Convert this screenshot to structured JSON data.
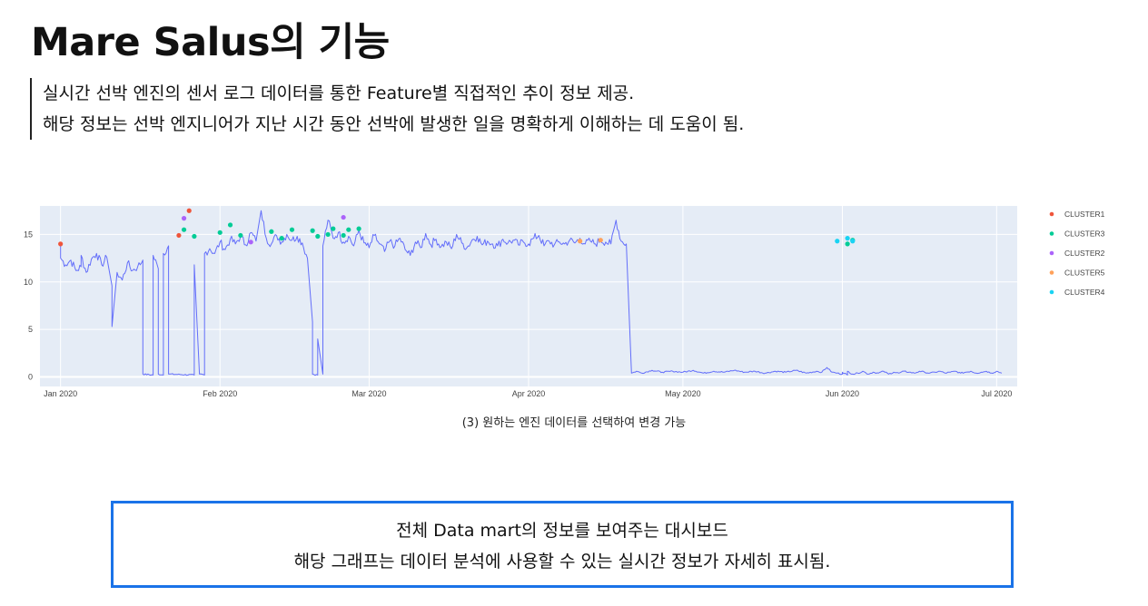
{
  "page": {
    "title": "Mare Salus의 기능",
    "description": [
      "실시간 선박 엔진의 센서 로그 데이터를 통한 Feature별 직접적인 추이 정보 제공.",
      "해당 정보는 선박 엔지니어가 지난 시간 동안 선박에 발생한 일을 명확하게 이해하는 데 도움이 됨."
    ],
    "caption": "(3) 원하는 엔진 데이터를 선택하여 변경 가능",
    "box_lines": [
      "전체 Data mart의 정보를 보여주는 대시보드",
      "해당 그래프는 데이터 분석에 사용할 수 있는 실시간 정보가 자세히 표시됨."
    ]
  },
  "chart_data": {
    "type": "line",
    "title": "",
    "xlabel": "",
    "ylabel": "",
    "x_unit": "day",
    "xlim": [
      "2019-12-28",
      "2020-07-05"
    ],
    "ylim": [
      -1,
      18
    ],
    "y_ticks": [
      0,
      5,
      10,
      15
    ],
    "x_ticks": [
      {
        "date": "2020-01-01",
        "label": "Jan 2020"
      },
      {
        "date": "2020-02-01",
        "label": "Feb 2020"
      },
      {
        "date": "2020-03-01",
        "label": "Mar 2020"
      },
      {
        "date": "2020-04-01",
        "label": "Apr 2020"
      },
      {
        "date": "2020-05-01",
        "label": "May 2020"
      },
      {
        "date": "2020-06-01",
        "label": "Jun 2020"
      },
      {
        "date": "2020-07-01",
        "label": "Jul 2020"
      }
    ],
    "grid": true,
    "legend_position": "right",
    "background": "#e5ecf6",
    "line_color": "#636efa",
    "line_points": [
      [
        "2020-01-01",
        14.0
      ],
      [
        "2020-01-01",
        12.5
      ],
      [
        "2020-01-02",
        11.8
      ],
      [
        "2020-01-03",
        12.3
      ],
      [
        "2020-01-04",
        11.2
      ],
      [
        "2020-01-05",
        11.6
      ],
      [
        "2020-01-05",
        12.8
      ],
      [
        "2020-01-06",
        11.0
      ],
      [
        "2020-01-07",
        12.4
      ],
      [
        "2020-01-08",
        13.0
      ],
      [
        "2020-01-09",
        11.8
      ],
      [
        "2020-01-10",
        12.6
      ],
      [
        "2020-01-11",
        9.6
      ],
      [
        "2020-01-11",
        5.3
      ],
      [
        "2020-01-12",
        11.0
      ],
      [
        "2020-01-13",
        10.2
      ],
      [
        "2020-01-14",
        12.0
      ],
      [
        "2020-01-15",
        11.2
      ],
      [
        "2020-01-16",
        11.6
      ],
      [
        "2020-01-17",
        12.3
      ],
      [
        "2020-01-17",
        0.3
      ],
      [
        "2020-01-19",
        0.2
      ],
      [
        "2020-01-19",
        12.8
      ],
      [
        "2020-01-20",
        11.4
      ],
      [
        "2020-01-20",
        0.3
      ],
      [
        "2020-01-21",
        0.2
      ],
      [
        "2020-01-21",
        13.0
      ],
      [
        "2020-01-22",
        13.8
      ],
      [
        "2020-01-22",
        0.3
      ],
      [
        "2020-01-27",
        0.2
      ],
      [
        "2020-01-27",
        11.8
      ],
      [
        "2020-01-28",
        0.3
      ],
      [
        "2020-01-29",
        0.2
      ],
      [
        "2020-01-29",
        13.0
      ],
      [
        "2020-01-30",
        13.5
      ],
      [
        "2020-01-31",
        13.0
      ],
      [
        "2020-02-01",
        14.2
      ],
      [
        "2020-02-02",
        13.4
      ],
      [
        "2020-02-03",
        14.5
      ],
      [
        "2020-02-04",
        14.0
      ],
      [
        "2020-02-05",
        14.8
      ],
      [
        "2020-02-06",
        13.9
      ],
      [
        "2020-02-07",
        15.2
      ],
      [
        "2020-02-08",
        14.3
      ],
      [
        "2020-02-09",
        17.5
      ],
      [
        "2020-02-10",
        14.6
      ],
      [
        "2020-02-11",
        14.0
      ],
      [
        "2020-02-12",
        14.9
      ],
      [
        "2020-02-13",
        14.2
      ],
      [
        "2020-02-14",
        15.0
      ],
      [
        "2020-02-15",
        14.4
      ],
      [
        "2020-02-16",
        14.8
      ],
      [
        "2020-02-17",
        14.1
      ],
      [
        "2020-02-18",
        12.5
      ],
      [
        "2020-02-19",
        5.8
      ],
      [
        "2020-02-19",
        0.3
      ],
      [
        "2020-02-20",
        0.2
      ],
      [
        "2020-02-20",
        4.0
      ],
      [
        "2020-02-21",
        0.3
      ],
      [
        "2020-02-21",
        13.8
      ],
      [
        "2020-02-22",
        16.5
      ],
      [
        "2020-02-23",
        14.6
      ],
      [
        "2020-02-24",
        15.2
      ],
      [
        "2020-02-25",
        14.2
      ],
      [
        "2020-02-26",
        14.8
      ],
      [
        "2020-02-27",
        13.8
      ],
      [
        "2020-02-28",
        15.4
      ],
      [
        "2020-02-29",
        14.1
      ],
      [
        "2020-03-01",
        13.6
      ],
      [
        "2020-03-02",
        14.9
      ],
      [
        "2020-03-03",
        14.0
      ],
      [
        "2020-03-04",
        13.2
      ],
      [
        "2020-03-05",
        14.3
      ],
      [
        "2020-03-06",
        13.8
      ],
      [
        "2020-03-07",
        14.6
      ],
      [
        "2020-03-08",
        13.4
      ],
      [
        "2020-03-09",
        12.8
      ],
      [
        "2020-03-10",
        14.2
      ],
      [
        "2020-03-11",
        13.6
      ],
      [
        "2020-03-12",
        15.1
      ],
      [
        "2020-03-13",
        13.9
      ],
      [
        "2020-03-14",
        14.5
      ],
      [
        "2020-03-15",
        13.7
      ],
      [
        "2020-03-16",
        14.2
      ],
      [
        "2020-03-17",
        13.5
      ],
      [
        "2020-03-18",
        15.0
      ],
      [
        "2020-03-19",
        14.1
      ],
      [
        "2020-03-20",
        13.6
      ],
      [
        "2020-03-21",
        14.4
      ],
      [
        "2020-03-22",
        14.8
      ],
      [
        "2020-03-23",
        13.9
      ],
      [
        "2020-03-24",
        14.3
      ],
      [
        "2020-03-25",
        14.0
      ],
      [
        "2020-03-26",
        13.8
      ],
      [
        "2020-03-27",
        14.5
      ],
      [
        "2020-03-28",
        14.1
      ],
      [
        "2020-03-29",
        14.4
      ],
      [
        "2020-03-30",
        13.9
      ],
      [
        "2020-03-31",
        14.2
      ],
      [
        "2020-04-01",
        14.0
      ],
      [
        "2020-04-02",
        14.6
      ],
      [
        "2020-04-03",
        14.9
      ],
      [
        "2020-04-04",
        13.8
      ],
      [
        "2020-04-05",
        14.3
      ],
      [
        "2020-04-06",
        13.9
      ],
      [
        "2020-04-07",
        14.2
      ],
      [
        "2020-04-08",
        14.0
      ],
      [
        "2020-04-09",
        14.4
      ],
      [
        "2020-04-10",
        14.1
      ],
      [
        "2020-04-11",
        14.6
      ],
      [
        "2020-04-12",
        14.0
      ],
      [
        "2020-04-13",
        14.3
      ],
      [
        "2020-04-14",
        14.0
      ],
      [
        "2020-04-15",
        14.4
      ],
      [
        "2020-04-16",
        14.2
      ],
      [
        "2020-04-17",
        14.0
      ],
      [
        "2020-04-18",
        16.5
      ],
      [
        "2020-04-19",
        14.3
      ],
      [
        "2020-04-20",
        14.0
      ],
      [
        "2020-04-21",
        0.4
      ],
      [
        "2020-04-22",
        0.6
      ],
      [
        "2020-04-23",
        0.4
      ],
      [
        "2020-04-25",
        0.7
      ],
      [
        "2020-04-27",
        0.5
      ],
      [
        "2020-04-29",
        0.6
      ],
      [
        "2020-05-01",
        0.5
      ],
      [
        "2020-05-03",
        0.7
      ],
      [
        "2020-05-05",
        0.4
      ],
      [
        "2020-05-07",
        0.6
      ],
      [
        "2020-05-09",
        0.5
      ],
      [
        "2020-05-11",
        0.7
      ],
      [
        "2020-05-13",
        0.5
      ],
      [
        "2020-05-15",
        0.6
      ],
      [
        "2020-05-17",
        0.4
      ],
      [
        "2020-05-19",
        0.6
      ],
      [
        "2020-05-21",
        0.5
      ],
      [
        "2020-05-23",
        0.7
      ],
      [
        "2020-05-25",
        0.4
      ],
      [
        "2020-05-27",
        0.6
      ],
      [
        "2020-05-28",
        0.5
      ],
      [
        "2020-05-29",
        1.0
      ],
      [
        "2020-05-30",
        0.5
      ],
      [
        "2020-05-31",
        0.4
      ],
      [
        "2020-06-01",
        0.3
      ],
      [
        "2020-06-01",
        0.5
      ],
      [
        "2020-06-02",
        0.2
      ],
      [
        "2020-06-02",
        0.6
      ],
      [
        "2020-06-03",
        0.3
      ],
      [
        "2020-06-04",
        0.4
      ],
      [
        "2020-06-05",
        0.6
      ],
      [
        "2020-06-06",
        0.3
      ],
      [
        "2020-06-07",
        0.5
      ],
      [
        "2020-06-08",
        0.4
      ],
      [
        "2020-06-09",
        0.6
      ],
      [
        "2020-06-10",
        0.3
      ],
      [
        "2020-06-11",
        0.5
      ],
      [
        "2020-06-12",
        0.4
      ],
      [
        "2020-06-13",
        0.6
      ],
      [
        "2020-06-14",
        0.5
      ],
      [
        "2020-06-15",
        0.4
      ],
      [
        "2020-06-16",
        0.6
      ],
      [
        "2020-06-17",
        0.5
      ],
      [
        "2020-06-18",
        0.4
      ],
      [
        "2020-06-19",
        0.5
      ],
      [
        "2020-06-20",
        0.6
      ],
      [
        "2020-06-21",
        0.4
      ],
      [
        "2020-06-22",
        0.5
      ],
      [
        "2020-06-23",
        0.6
      ],
      [
        "2020-06-24",
        0.4
      ],
      [
        "2020-06-25",
        0.5
      ],
      [
        "2020-06-26",
        0.6
      ],
      [
        "2020-06-27",
        0.4
      ],
      [
        "2020-06-28",
        0.5
      ],
      [
        "2020-06-29",
        0.6
      ],
      [
        "2020-06-30",
        0.4
      ],
      [
        "2020-07-01",
        0.6
      ],
      [
        "2020-07-02",
        0.4
      ]
    ],
    "series": [
      {
        "name": "CLUSTER1",
        "color": "#ef553b",
        "points": [
          [
            "2020-01-01",
            14.0
          ],
          [
            "2020-01-24",
            14.9
          ],
          [
            "2020-01-26",
            17.5
          ]
        ]
      },
      {
        "name": "CLUSTER3",
        "color": "#00cc96",
        "points": [
          [
            "2020-01-25",
            15.5
          ],
          [
            "2020-01-27",
            14.8
          ],
          [
            "2020-02-01",
            15.2
          ],
          [
            "2020-02-03",
            16.0
          ],
          [
            "2020-02-05",
            14.9
          ],
          [
            "2020-02-11",
            15.3
          ],
          [
            "2020-02-13",
            14.6
          ],
          [
            "2020-02-15",
            15.5
          ],
          [
            "2020-02-19",
            15.4
          ],
          [
            "2020-02-20",
            14.8
          ],
          [
            "2020-02-22",
            15.0
          ],
          [
            "2020-02-23",
            15.6
          ],
          [
            "2020-02-25",
            14.9
          ],
          [
            "2020-02-26",
            15.5
          ],
          [
            "2020-02-28",
            15.6
          ],
          [
            "2020-06-02",
            14.0
          ],
          [
            "2020-06-03",
            14.4
          ]
        ]
      },
      {
        "name": "CLUSTER2",
        "color": "#ab63fa",
        "points": [
          [
            "2020-01-25",
            16.7
          ],
          [
            "2020-02-07",
            14.2
          ],
          [
            "2020-02-25",
            16.8
          ]
        ]
      },
      {
        "name": "CLUSTER5",
        "color": "#ffa15a",
        "points": [
          [
            "2020-04-11",
            14.3
          ],
          [
            "2020-04-15",
            14.4
          ]
        ]
      },
      {
        "name": "CLUSTER4",
        "color": "#19d3f3",
        "points": [
          [
            "2020-05-31",
            14.3
          ],
          [
            "2020-06-02",
            14.6
          ],
          [
            "2020-06-03",
            14.3
          ]
        ]
      }
    ]
  }
}
